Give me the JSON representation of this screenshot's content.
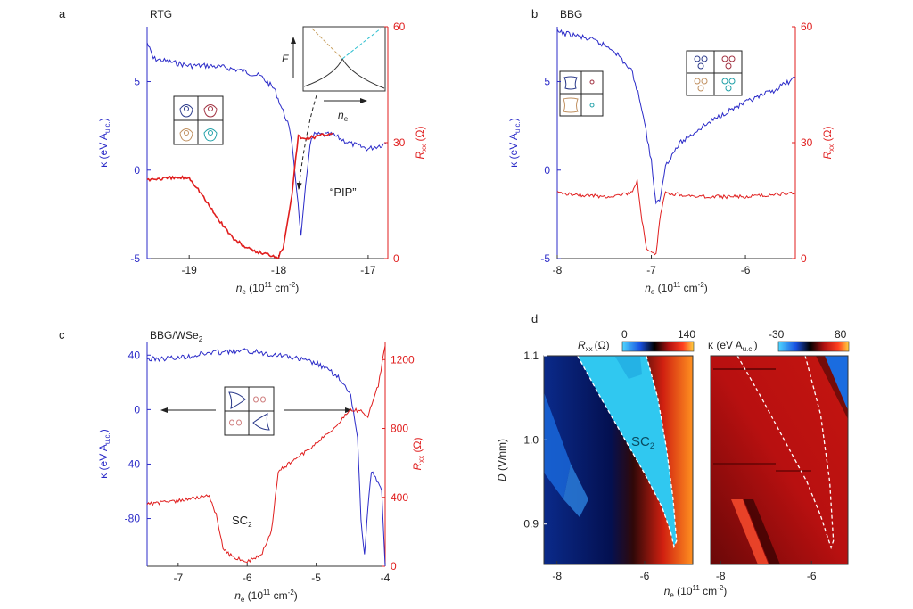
{
  "colors": {
    "blue": "#2b2bc8",
    "red": "#e01e1e",
    "axis": "#333333"
  },
  "common": {
    "xlabel": [
      "n",
      "e",
      " (10",
      "11",
      " cm",
      "-2",
      ")"
    ],
    "ylabel_kappa": [
      "κ (eV A",
      "u.c.",
      ")"
    ],
    "ylabel_rxx": [
      "R",
      "xx",
      " (Ω)"
    ],
    "ylabel_D": [
      "D",
      " (V/nm)"
    ]
  },
  "chart_data": [
    {
      "panel": "a",
      "type": "line",
      "title": "RTG",
      "xlim": [
        -19.47,
        -16.78
      ],
      "ylim_left": [
        -5,
        8.1
      ],
      "ylim_right": [
        0,
        60
      ],
      "xticks": [
        -19,
        -18,
        -17
      ],
      "yticks_left": [
        -5,
        0,
        5
      ],
      "yticks_right": [
        0,
        30,
        60
      ],
      "series": [
        {
          "name": "κ",
          "axis": "left",
          "color": "blue",
          "x": [
            -19.47,
            -19.4,
            -19.2,
            -19,
            -18.8,
            -18.6,
            -18.4,
            -18.2,
            -18.05,
            -17.95,
            -17.9,
            -17.85,
            -17.8,
            -17.75,
            -17.7,
            -17.65,
            -17.6,
            -17.4,
            -17.2,
            -17,
            -16.8
          ],
          "y": [
            7.2,
            6.3,
            6.1,
            5.9,
            5.9,
            5.8,
            5.6,
            5.3,
            4.6,
            3.3,
            2.7,
            1.5,
            -1,
            -3.8,
            -1,
            1.5,
            2,
            2,
            1.5,
            1.2,
            1.5
          ]
        },
        {
          "name": "Rxx",
          "axis": "right",
          "color": "red",
          "x": [
            -19.47,
            -19.2,
            -19.0,
            -18.9,
            -18.7,
            -18.5,
            -18.3,
            -18.0,
            -17.95,
            -17.85,
            -17.78,
            -17.75,
            -17.6,
            -17.4
          ],
          "y": [
            20.5,
            20.8,
            21,
            18,
            11,
            5,
            2,
            0.5,
            3,
            17,
            32,
            31,
            31.5,
            32.5
          ]
        }
      ],
      "annotations": {
        "pip": "“PIP”",
        "inset_y": "F",
        "inset_x": [
          "n",
          "e"
        ]
      }
    },
    {
      "panel": "b",
      "type": "line",
      "title": "BBG",
      "xlim": [
        -8,
        -5.47
      ],
      "ylim_left": [
        -5,
        8.1
      ],
      "ylim_right": [
        0,
        60
      ],
      "xticks": [
        -8,
        -7,
        -6
      ],
      "yticks_left": [
        -5,
        0,
        5
      ],
      "yticks_right": [
        0,
        30,
        60
      ],
      "series": [
        {
          "name": "κ",
          "axis": "left",
          "color": "blue",
          "x": [
            -8,
            -7.8,
            -7.6,
            -7.4,
            -7.2,
            -7.1,
            -7,
            -6.95,
            -6.9,
            -6.85,
            -6.7,
            -6.5,
            -6.2,
            -6,
            -5.7,
            -5.47
          ],
          "y": [
            7.8,
            7.6,
            7.3,
            6.8,
            5.5,
            3.5,
            0.5,
            -2,
            -1.5,
            0.3,
            1.5,
            2.3,
            3.3,
            3.8,
            4.5,
            5.2
          ]
        },
        {
          "name": "Rxx",
          "axis": "right",
          "color": "red",
          "x": [
            -8,
            -7.5,
            -7.2,
            -7.15,
            -7.1,
            -7.05,
            -6.95,
            -6.9,
            -6.85,
            -6.5,
            -6,
            -5.47
          ],
          "y": [
            17,
            16,
            17,
            20,
            10,
            2,
            1,
            12,
            17,
            16,
            16,
            17
          ]
        }
      ]
    },
    {
      "panel": "c",
      "type": "line",
      "title": [
        "BBG/WSe",
        "2"
      ],
      "xlim": [
        -7.45,
        -4
      ],
      "ylim_left": [
        -115,
        50
      ],
      "ylim_right": [
        0,
        1305
      ],
      "xticks": [
        -7,
        -6,
        -5,
        -4
      ],
      "yticks_left": [
        40,
        0,
        -40,
        -80
      ],
      "yticks_right": [
        0,
        400,
        800,
        1200
      ],
      "series": [
        {
          "name": "κ",
          "axis": "left",
          "color": "blue",
          "x": [
            -7.45,
            -7,
            -6.5,
            -6,
            -5.5,
            -5,
            -4.7,
            -4.5,
            -4.4,
            -4.35,
            -4.3,
            -4.25,
            -4.2,
            -4.1,
            -4.05,
            -4
          ],
          "y": [
            37,
            38,
            42,
            43,
            40,
            34,
            25,
            10,
            -20,
            -80,
            -108,
            -70,
            -45,
            -55,
            -60,
            -115
          ]
        },
        {
          "name": "Rxx",
          "axis": "right",
          "color": "red",
          "x": [
            -7.45,
            -7,
            -6.55,
            -6.45,
            -6.35,
            -6.2,
            -6,
            -5.8,
            -5.65,
            -5.55,
            -5.2,
            -4.8,
            -4.5,
            -4.35,
            -4.25,
            -4.1,
            -4
          ],
          "y": [
            360,
            380,
            410,
            300,
            100,
            50,
            30,
            60,
            200,
            550,
            650,
            780,
            910,
            900,
            870,
            1050,
            1280
          ]
        }
      ],
      "annotations": {
        "sc": [
          "SC",
          "2"
        ]
      }
    },
    {
      "panel": "d",
      "type": "heatmap",
      "maps": [
        {
          "name": "Rxx",
          "colorbar_label": [
            "R",
            "xx",
            "(Ω)"
          ],
          "clim": [
            0,
            140
          ],
          "xlim": [
            -8.3,
            -4.9
          ],
          "ylim": [
            0.852,
            1.1
          ],
          "xticks": [
            -8,
            -6
          ],
          "yticks": [
            0.9,
            1.0,
            1.1
          ],
          "boundary": {
            "x": [
              -7.53,
              -7,
              -6.5,
              -6,
              -5.6,
              -5.4,
              -5.33,
              -5.27,
              -5.35,
              -5.5,
              -5.7,
              -5.96
            ],
            "y": [
              1.1,
              1.05,
              1.005,
              0.96,
              0.92,
              0.89,
              0.873,
              0.88,
              0.93,
              0.99,
              1.05,
              1.1
            ]
          },
          "label": [
            "SC",
            "2"
          ]
        },
        {
          "name": "κ",
          "colorbar_label": [
            "κ (eV A",
            "u.c.",
            ")"
          ],
          "clim": [
            -30,
            80
          ],
          "xlim": [
            -8.22,
            -5.2
          ],
          "ylim": [
            0.852,
            1.1
          ],
          "xticks": [
            -8,
            -6
          ],
          "boundary": {
            "x": [
              -7.63,
              -7.1,
              -6.6,
              -6.1,
              -5.8,
              -5.62,
              -5.57,
              -5.52,
              -5.6,
              -5.8,
              -6.14
            ],
            "y": [
              1.1,
              1.05,
              1.0,
              0.95,
              0.91,
              0.88,
              0.872,
              0.88,
              0.95,
              1.03,
              1.1
            ]
          }
        }
      ]
    }
  ]
}
